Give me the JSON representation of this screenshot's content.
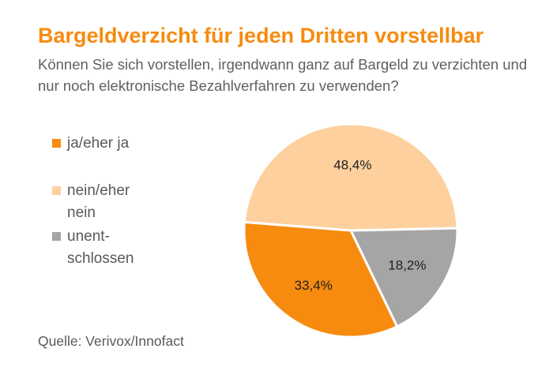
{
  "title": "Bargeldverzicht für jeden Dritten vorstellbar",
  "subtitle": "Können Sie sich vorstellen, irgendwann ganz auf Bargeld zu verzichten und nur noch elektronische Bezahlverfahren zu verwenden?",
  "source": "Quelle: Verivox/Innofact",
  "legend": [
    {
      "label": "ja/eher ja",
      "color": "#f78b0f"
    },
    {
      "label": "nein/eher nein",
      "color": "#fdd09e"
    },
    {
      "label": "unent-schlossen",
      "color": "#a5a5a5"
    }
  ],
  "chart_data": {
    "type": "pie",
    "title": "Bargeldverzicht für jeden Dritten vorstellbar",
    "slices": [
      {
        "name": "nein/eher nein",
        "value": 48.4,
        "label": "48,4%",
        "color": "#fdd09e"
      },
      {
        "name": "unent-schlossen",
        "value": 18.2,
        "label": "18,2%",
        "color": "#a5a5a5"
      },
      {
        "name": "ja/eher ja",
        "value": 33.4,
        "label": "33,4%",
        "color": "#f78b0f"
      }
    ],
    "legend_position": "left"
  }
}
